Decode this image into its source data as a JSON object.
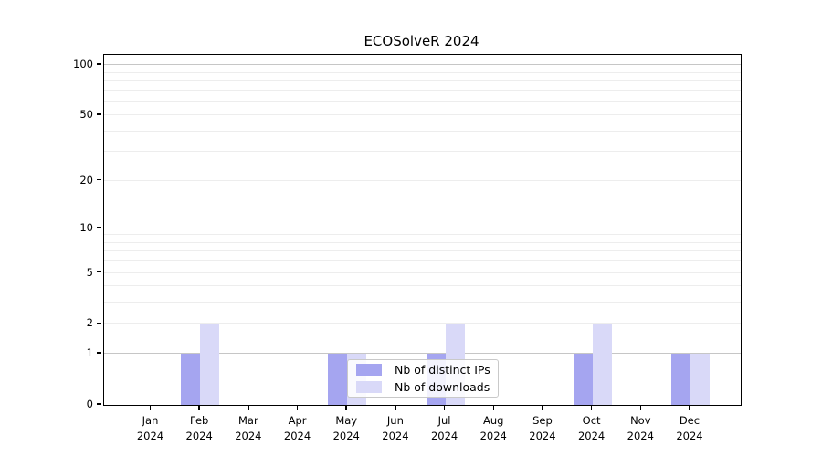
{
  "figure": {
    "title": "ECOSolveR 2024"
  },
  "chart_data": {
    "type": "bar",
    "title": "ECOSolveR 2024",
    "categories": [
      [
        "Jan",
        "2024"
      ],
      [
        "Feb",
        "2024"
      ],
      [
        "Mar",
        "2024"
      ],
      [
        "Apr",
        "2024"
      ],
      [
        "May",
        "2024"
      ],
      [
        "Jun",
        "2024"
      ],
      [
        "Jul",
        "2024"
      ],
      [
        "Aug",
        "2024"
      ],
      [
        "Sep",
        "2024"
      ],
      [
        "Oct",
        "2024"
      ],
      [
        "Nov",
        "2024"
      ],
      [
        "Dec",
        "2024"
      ]
    ],
    "series": [
      {
        "name": "Nb of distinct IPs",
        "color": "#a5a5f0",
        "values": [
          0,
          1,
          0,
          0,
          1,
          0,
          1,
          0,
          0,
          1,
          0,
          1
        ]
      },
      {
        "name": "Nb of downloads",
        "color": "#d9d9f8",
        "values": [
          0,
          2,
          0,
          0,
          1,
          0,
          2,
          0,
          0,
          2,
          0,
          1
        ]
      }
    ],
    "xlabel": "",
    "ylabel": "",
    "yscale": "log1p",
    "ylim": [
      0,
      115
    ],
    "ytick_labels": [
      "0",
      "1",
      "2",
      "5",
      "10",
      "20",
      "50",
      "100"
    ],
    "ytick_values": [
      0,
      1,
      2,
      5,
      10,
      20,
      50,
      100
    ],
    "grid_major_values": [
      1,
      10,
      100
    ],
    "grid_minor_values": [
      2,
      3,
      4,
      5,
      6,
      7,
      8,
      9,
      20,
      30,
      40,
      50,
      60,
      70,
      80,
      90
    ],
    "grid": "on",
    "legend_position": "lower center"
  },
  "legend": {
    "items": [
      {
        "label": "Nb of distinct IPs",
        "color": "#a5a5f0"
      },
      {
        "label": "Nb of downloads",
        "color": "#d9d9f8"
      }
    ]
  },
  "colors": {
    "grid_major": "#c6c6c6",
    "grid_minor": "#ededed",
    "spine": "#000000",
    "bar_ips": "#a5a5f0",
    "bar_downloads": "#d9d9f8",
    "text": "#000000"
  }
}
